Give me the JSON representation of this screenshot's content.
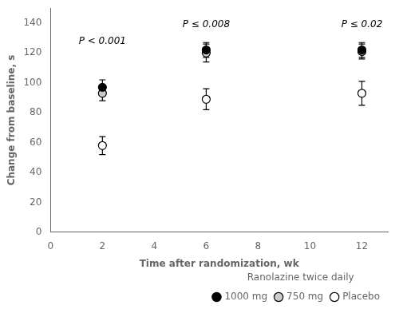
{
  "chart_data": {
    "type": "scatter",
    "x": [
      2,
      6,
      12
    ],
    "series": [
      {
        "name": "1000 mg",
        "color": "#000000",
        "values": [
          97,
          122,
          122
        ],
        "yerr": [
          5,
          5,
          5
        ]
      },
      {
        "name": "750 mg",
        "color": "#cccccc",
        "values": [
          93,
          120,
          121
        ],
        "yerr": [
          5,
          6,
          5
        ]
      },
      {
        "name": "Placebo",
        "color": "#ffffff",
        "values": [
          58,
          89,
          93
        ],
        "yerr": [
          6,
          7,
          8
        ]
      }
    ],
    "annotations": [
      {
        "text": "P < 0.001",
        "x": 2,
        "y": 131
      },
      {
        "text": "P ≤ 0.008",
        "x": 6,
        "y": 142
      },
      {
        "text": "P ≤ 0.02",
        "x": 12,
        "y": 142
      }
    ],
    "xlabel": "Time after randomization, wk",
    "ylabel": "Change from baseline, s",
    "xlim": [
      0,
      13
    ],
    "ylim": [
      0,
      150
    ],
    "xticks": [
      0,
      2,
      4,
      6,
      8,
      10,
      12
    ],
    "yticks": [
      0,
      20,
      40,
      60,
      80,
      100,
      120,
      140
    ],
    "legend": "lower right",
    "legend_title": "Ranolazine twice daily",
    "grid": false
  }
}
